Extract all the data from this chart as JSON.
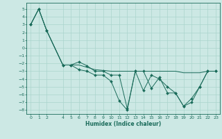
{
  "xlabel": "Humidex (Indice chaleur)",
  "bg_color": "#cce8e4",
  "grid_color": "#aad4cc",
  "line_color": "#1a6b5a",
  "ylim": [
    -8.5,
    5.8
  ],
  "xlim": [
    -0.5,
    23.5
  ],
  "yticks": [
    5,
    4,
    3,
    2,
    1,
    0,
    -1,
    -2,
    -3,
    -4,
    -5,
    -6,
    -7,
    -8
  ],
  "xticks": [
    0,
    1,
    2,
    4,
    5,
    6,
    7,
    8,
    9,
    10,
    11,
    12,
    13,
    14,
    15,
    16,
    17,
    18,
    19,
    20,
    21,
    22,
    23
  ],
  "line1_x": [
    0,
    1,
    2,
    4,
    5,
    6,
    7,
    8,
    9,
    10,
    11,
    12,
    13,
    14,
    15,
    16,
    17,
    18,
    19,
    20,
    21,
    22,
    23
  ],
  "line1_y": [
    3.0,
    5.0,
    2.2,
    -2.2,
    -2.2,
    -2.8,
    -3.0,
    -3.5,
    -3.5,
    -4.3,
    -6.8,
    -8.0,
    -3.0,
    -5.5,
    -3.5,
    -4.0,
    -5.0,
    -5.8,
    -7.5,
    -6.5,
    -5.0,
    -3.0,
    -3.0
  ],
  "line2_x": [
    0,
    1,
    2,
    4,
    5,
    6,
    7,
    8,
    9,
    10,
    11,
    12,
    13,
    14,
    15,
    16,
    17,
    18,
    19,
    20,
    21,
    22,
    23
  ],
  "line2_y": [
    3.0,
    5.0,
    2.2,
    -2.2,
    -2.2,
    -2.2,
    -2.5,
    -2.8,
    -2.9,
    -3.0,
    -3.0,
    -3.0,
    -3.0,
    -3.0,
    -3.0,
    -3.0,
    -3.0,
    -3.0,
    -3.2,
    -3.2,
    -3.2,
    -3.0,
    -3.0
  ],
  "line3_x": [
    0,
    1,
    2,
    4,
    5,
    6,
    7,
    8,
    9,
    10,
    11,
    12,
    13,
    14,
    15,
    16,
    17,
    18,
    19,
    20,
    21,
    22,
    23
  ],
  "line3_y": [
    3.0,
    5.0,
    2.2,
    -2.2,
    -2.2,
    -1.8,
    -2.3,
    -3.0,
    -3.0,
    -3.5,
    -3.5,
    -7.8,
    -3.0,
    -3.0,
    -5.2,
    -3.8,
    -5.8,
    -5.8,
    -7.5,
    -7.0,
    -5.0,
    -3.0,
    -3.0
  ]
}
